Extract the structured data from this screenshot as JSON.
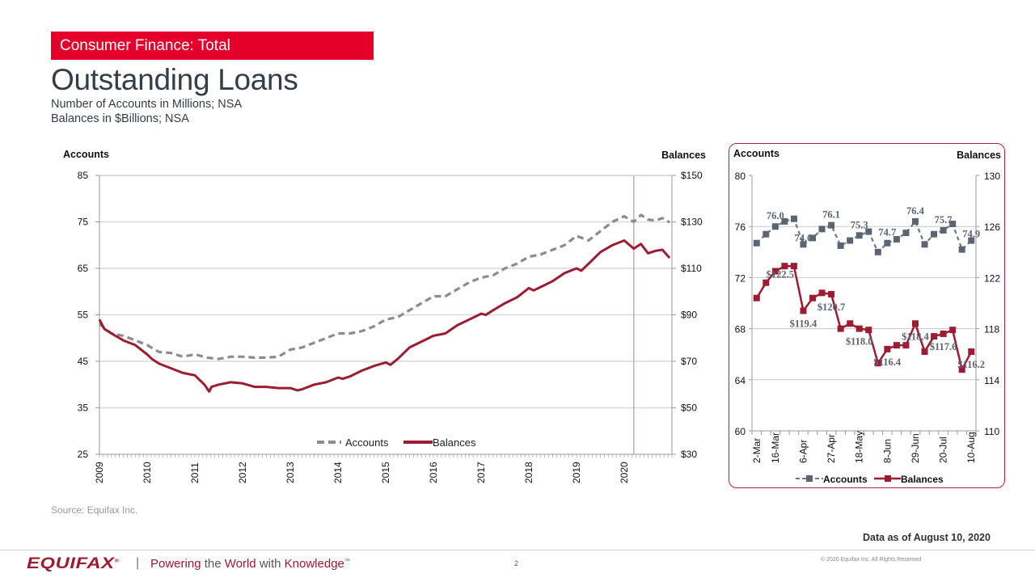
{
  "header": {
    "banner": "Consumer Finance: Total",
    "title": "Outstanding Loans",
    "subtitle_1": "Number of Accounts in Millions; NSA",
    "subtitle_2": "Balances in $Billions; NSA"
  },
  "colors": {
    "brand_red": "#e4002b",
    "balances": "#9d1c31",
    "accounts": "#8c8c8c",
    "accounts_marker": "#5b6470",
    "vertical_marker": "#e08a94",
    "gridline": "#d9d9d9"
  },
  "chart_data": [
    {
      "type": "line",
      "title": "",
      "ylabel_left": "Accounts",
      "ylabel_right": "Balances",
      "ylim_left": [
        25,
        85
      ],
      "ylim_right": [
        30,
        150
      ],
      "yticks_left": [
        "85",
        "75",
        "65",
        "55",
        "45",
        "35",
        "25"
      ],
      "yticks_right": [
        "$150",
        "$130",
        "$110",
        "$90",
        "$70",
        "$50",
        "$30"
      ],
      "xlim": [
        2009.0,
        2021.0
      ],
      "xticks": [
        "2009",
        "2010",
        "2011",
        "2012",
        "2013",
        "2014",
        "2015",
        "2016",
        "2017",
        "2018",
        "2019",
        "2020"
      ],
      "grid": true,
      "legend": "bottom-center",
      "vertical_marker_x": 2020.2,
      "series": [
        {
          "name": "Accounts",
          "axis": "left",
          "style": "dashed",
          "x": [
            2009.0,
            2009.25,
            2009.5,
            2009.75,
            2010.0,
            2010.25,
            2010.5,
            2010.75,
            2011.0,
            2011.25,
            2011.5,
            2011.75,
            2012.0,
            2012.25,
            2012.5,
            2012.75,
            2013.0,
            2013.25,
            2013.5,
            2013.75,
            2014.0,
            2014.25,
            2014.5,
            2014.75,
            2015.0,
            2015.25,
            2015.5,
            2015.75,
            2016.0,
            2016.25,
            2016.5,
            2016.75,
            2017.0,
            2017.25,
            2017.5,
            2017.75,
            2018.0,
            2018.25,
            2018.5,
            2018.75,
            2019.0,
            2019.25,
            2019.5,
            2019.75,
            2020.0,
            2020.2,
            2020.35,
            2020.5,
            2020.65,
            2020.8,
            2020.95
          ],
          "values": [
            53,
            51,
            50.5,
            49.5,
            48.5,
            47,
            46.8,
            46,
            46.5,
            45.8,
            45.5,
            46,
            46,
            45.8,
            45.8,
            46,
            47.5,
            48,
            49,
            50,
            51,
            51,
            51.5,
            52.5,
            54,
            54.5,
            56,
            57.5,
            59,
            59,
            60.5,
            62,
            63,
            63.5,
            65,
            66,
            67.5,
            68,
            69,
            70,
            72,
            71,
            73,
            75,
            76.2,
            75,
            76.5,
            75.5,
            75.3,
            75.8,
            74.9
          ]
        },
        {
          "name": "Balances",
          "axis": "right",
          "style": "solid",
          "x": [
            2009.0,
            2009.1,
            2009.25,
            2009.5,
            2009.75,
            2010.0,
            2010.1,
            2010.25,
            2010.5,
            2010.75,
            2011.0,
            2011.2,
            2011.3,
            2011.35,
            2011.5,
            2011.75,
            2012.0,
            2012.25,
            2012.5,
            2012.75,
            2013.0,
            2013.15,
            2013.25,
            2013.5,
            2013.75,
            2014.0,
            2014.1,
            2014.25,
            2014.5,
            2014.75,
            2015.0,
            2015.1,
            2015.25,
            2015.5,
            2015.75,
            2016.0,
            2016.25,
            2016.5,
            2016.75,
            2017.0,
            2017.1,
            2017.25,
            2017.5,
            2017.75,
            2018.0,
            2018.1,
            2018.25,
            2018.5,
            2018.75,
            2019.0,
            2019.1,
            2019.25,
            2019.5,
            2019.75,
            2020.0,
            2020.2,
            2020.35,
            2020.5,
            2020.65,
            2020.8,
            2020.95
          ],
          "values": [
            88,
            84,
            82,
            79,
            77,
            73,
            71,
            69,
            67,
            65,
            64,
            60,
            57,
            59,
            60,
            61,
            60.5,
            59,
            59,
            58.5,
            58.5,
            57.5,
            58,
            60,
            61,
            63,
            62.5,
            63.5,
            66,
            68,
            69.5,
            68.5,
            71,
            76,
            78.5,
            81,
            82,
            85.5,
            88,
            90.5,
            90,
            92,
            95,
            97.5,
            101.5,
            100.5,
            102,
            104.5,
            108,
            110,
            109,
            112,
            117,
            120,
            122,
            118.5,
            120.5,
            116.5,
            117.5,
            118,
            114.5
          ]
        }
      ]
    },
    {
      "type": "line",
      "title": "",
      "ylabel_left": "Accounts",
      "ylabel_right": "Balances",
      "ylim_left": [
        60,
        80
      ],
      "ylim_right": [
        110,
        130
      ],
      "yticks_left": [
        "80",
        "76",
        "72",
        "68",
        "64",
        "60"
      ],
      "yticks_right": [
        "130",
        "126",
        "122",
        "118",
        "114",
        "110"
      ],
      "categories": [
        "2-Mar",
        "9-Mar",
        "16-Mar",
        "23-Mar",
        "30-Mar",
        "6-Apr",
        "13-Apr",
        "20-Apr",
        "27-Apr",
        "4-May",
        "11-May",
        "18-May",
        "25-May",
        "1-Jun",
        "8-Jun",
        "15-Jun",
        "22-Jun",
        "29-Jun",
        "6-Jul",
        "13-Jul",
        "20-Jul",
        "27-Jul",
        "3-Aug",
        "10-Aug"
      ],
      "xtick_labels": [
        "2-Mar",
        "16-Mar",
        "6-Apr",
        "27-Apr",
        "18-May",
        "8-Jun",
        "29-Jun",
        "20-Jul",
        "10-Aug"
      ],
      "grid": true,
      "legend": "bottom-center",
      "series": [
        {
          "name": "Accounts",
          "axis": "left",
          "style": "dashed-marker",
          "values": [
            74.7,
            75.4,
            76.0,
            76.4,
            76.6,
            74.6,
            75.1,
            75.8,
            76.1,
            74.5,
            74.9,
            75.3,
            75.6,
            74.0,
            74.7,
            75.0,
            75.5,
            76.4,
            74.6,
            75.4,
            75.7,
            76.2,
            74.2,
            74.9
          ],
          "data_labels": [
            {
              "index": 2,
              "text": "76.0"
            },
            {
              "index": 5,
              "text": "74.6"
            },
            {
              "index": 8,
              "text": "76.1"
            },
            {
              "index": 11,
              "text": "75.3"
            },
            {
              "index": 14,
              "text": "74.7"
            },
            {
              "index": 17,
              "text": "76.4"
            },
            {
              "index": 20,
              "text": "75.7"
            },
            {
              "index": 23,
              "text": "74.9"
            }
          ]
        },
        {
          "name": "Balances",
          "axis": "right",
          "style": "solid-marker",
          "values": [
            120.4,
            121.6,
            122.5,
            122.9,
            122.9,
            119.4,
            120.4,
            120.8,
            120.7,
            118.0,
            118.4,
            118.0,
            117.9,
            115.3,
            116.4,
            116.7,
            116.7,
            118.4,
            116.2,
            117.4,
            117.6,
            117.9,
            114.8,
            116.2
          ],
          "data_labels": [
            {
              "index": 2,
              "text": "$122.5"
            },
            {
              "index": 5,
              "text": "$119.4"
            },
            {
              "index": 8,
              "text": "$120.7"
            },
            {
              "index": 11,
              "text": "$118.0"
            },
            {
              "index": 14,
              "text": "$116.4"
            },
            {
              "index": 17,
              "text": "$118.4"
            },
            {
              "index": 20,
              "text": "$117.6"
            },
            {
              "index": 23,
              "text": "$116.2"
            }
          ]
        }
      ]
    }
  ],
  "footer": {
    "source": "Source: Equifax Inc.",
    "data_as_of": "Data as of August 10, 2020",
    "logo": "EQUIFAX",
    "logo_reg": "®",
    "pipe": "|",
    "tagline_1": "Powering ",
    "tagline_2": "the ",
    "tagline_3": "World ",
    "tagline_4": "with ",
    "tagline_5": "Knowledge",
    "tagline_tm": "™",
    "page_number": "2",
    "copyright": "© 2020  Equifax  Inc. All Rights  Reserved"
  }
}
